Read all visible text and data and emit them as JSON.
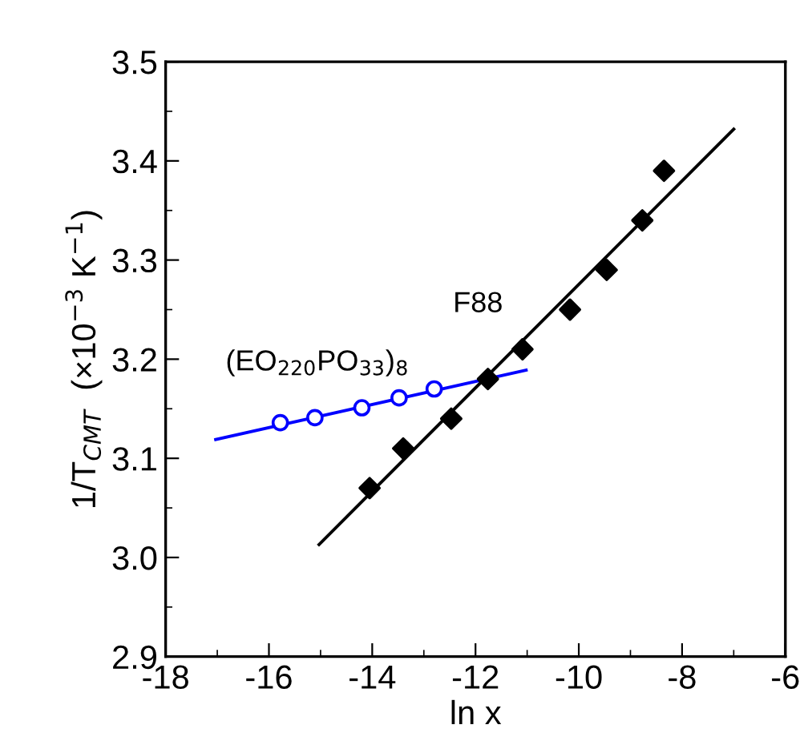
{
  "chart_data": {
    "type": "scatter",
    "xlabel": "ln x",
    "ylabel": "1/T$_{CMT}$  (×10$^{−3}$ K$^{−1}$)",
    "xlim": [
      -18,
      -6
    ],
    "xticks": [
      -18,
      -16,
      -14,
      -12,
      -10,
      -8,
      -6
    ],
    "ylim": [
      2.9,
      3.5
    ],
    "yticks": [
      {
        "value": 2.9,
        "label": "2.9"
      },
      {
        "value": 3.0,
        "label": "3.0"
      },
      {
        "value": 3.1,
        "label": "3.1"
      },
      {
        "value": 3.2,
        "label": "3.2"
      },
      {
        "value": 3.3,
        "label": "3.3"
      },
      {
        "value": 3.4,
        "label": "3.4"
      },
      {
        "value": 3.5,
        "label": "3.5"
      }
    ],
    "grid": false,
    "legend": false,
    "series": [
      {
        "name": "F88",
        "marker": "diamond",
        "color": "#000000",
        "x": [
          -14.05,
          -13.4,
          -12.47,
          -11.76,
          -11.09,
          -10.17,
          -9.46,
          -8.77,
          -8.35
        ],
        "values": [
          3.07,
          3.11,
          3.14,
          3.18,
          3.21,
          3.25,
          3.29,
          3.34,
          3.39
        ]
      },
      {
        "type": "line",
        "marker": "none",
        "color": "#000000",
        "x": [
          -15.03,
          -7.0
        ],
        "values": [
          3.013,
          3.432
        ]
      },
      {
        "name": "(EO$_{220}$PO$_{33}$)$_{8}$",
        "marker": "circle",
        "color": "#0000ff",
        "x": [
          -15.78,
          -15.11,
          -14.2,
          -13.48,
          -12.8
        ],
        "values": [
          3.136,
          3.141,
          3.151,
          3.161,
          3.17
        ]
      },
      {
        "type": "line",
        "marker": "none",
        "color": "#0000ff",
        "x": [
          -17.03,
          -11.02
        ],
        "values": [
          3.119,
          3.189
        ]
      }
    ]
  }
}
